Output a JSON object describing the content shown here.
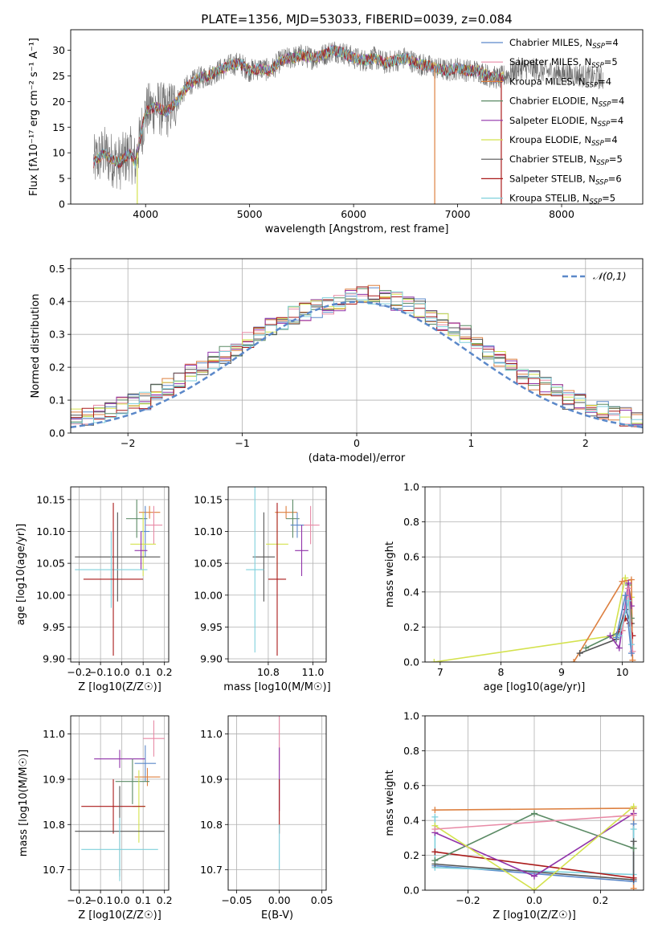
{
  "figure": {
    "title": "PLATE=1356, MJD=53033, FIBERID=0039, z=0.084"
  },
  "chart_data": [
    {
      "id": "spectrum",
      "type": "line",
      "xlabel": "wavelength [Angstrom, rest frame]",
      "ylabel": "Flux [fλ10⁻¹⁷ erg cm⁻² s⁻¹ A⁻¹]",
      "xlim": [
        3280,
        8780
      ],
      "ylim": [
        0,
        34
      ],
      "xticks": [
        4000,
        5000,
        6000,
        7000,
        8000
      ],
      "yticks": [
        0,
        5,
        10,
        15,
        20,
        25,
        30
      ],
      "grid": false,
      "legend_position": "top-right",
      "continuum": {
        "x": [
          3500,
          3550,
          3600,
          3650,
          3700,
          3750,
          3800,
          3850,
          3900,
          3950,
          4000,
          4100,
          4200,
          4300,
          4400,
          4500,
          4600,
          4700,
          4800,
          4900,
          5000,
          5100,
          5200,
          5300,
          5400,
          5500,
          5600,
          5700,
          5800,
          5900,
          6000,
          6100,
          6200,
          6300,
          6400,
          6500,
          6600,
          6700,
          6800,
          6900,
          7000,
          7100,
          7200,
          7300,
          7400,
          7600,
          7800,
          8000,
          8200,
          8400
        ],
        "y": [
          8,
          9,
          10,
          9,
          8.5,
          8,
          9,
          10,
          8,
          13,
          18,
          19,
          18,
          20,
          23,
          24.5,
          25,
          26,
          27,
          27.5,
          26,
          26.5,
          26,
          28,
          28.5,
          29,
          28.5,
          29,
          30,
          29.5,
          28.5,
          28,
          28.5,
          27.5,
          28,
          28.5,
          27.5,
          27,
          26.5,
          26,
          26.5,
          26,
          26,
          25,
          24.5,
          26.5,
          26,
          25.5,
          25,
          24.5
        ]
      },
      "series": [
        {
          "name": "Chabrier MILES, N_SSP=4",
          "color": "#5b88c9"
        },
        {
          "name": "Salpeter MILES, N_SSP=5",
          "color": "#e88aa6"
        },
        {
          "name": "Kroupa MILES, N_SSP=4",
          "color": "#dd8040"
        },
        {
          "name": "Chabrier ELODIE, N_SSP=4",
          "color": "#5a8a64"
        },
        {
          "name": "Salpeter ELODIE, N_SSP=4",
          "color": "#9033aa"
        },
        {
          "name": "Kroupa ELODIE, N_SSP=4",
          "color": "#d4e24e"
        },
        {
          "name": "Chabrier STELIB, N_SSP=5",
          "color": "#555555"
        },
        {
          "name": "Salpeter STELIB, N_SSP=6",
          "color": "#aa1a1a"
        },
        {
          "name": "Kroupa STELIB, N_SSP=5",
          "color": "#7fd0dc"
        }
      ],
      "legend_labels": [
        {
          "pre": "Chabrier MILES, N",
          "sub": "SSP",
          "post": "=4"
        },
        {
          "pre": "Salpeter MILES, N",
          "sub": "SSP",
          "post": "=5"
        },
        {
          "pre": "Kroupa MILES, N",
          "sub": "SSP",
          "post": "=4"
        },
        {
          "pre": "Chabrier ELODIE, N",
          "sub": "SSP",
          "post": "=4"
        },
        {
          "pre": "Salpeter ELODIE, N",
          "sub": "SSP",
          "post": "=4"
        },
        {
          "pre": "Kroupa ELODIE, N",
          "sub": "SSP",
          "post": "=4"
        },
        {
          "pre": "Chabrier STELIB, N",
          "sub": "SSP",
          "post": "=5"
        },
        {
          "pre": "Salpeter STELIB, N",
          "sub": "SSP",
          "post": "=6"
        },
        {
          "pre": "Kroupa STELIB, N",
          "sub": "SSP",
          "post": "=5"
        }
      ],
      "model_dropouts": [
        {
          "x": 3920,
          "color": "#d4e24e"
        },
        {
          "x": 6780,
          "color": "#dd8040"
        },
        {
          "x": 7420,
          "color": "#aa1a1a"
        }
      ]
    },
    {
      "id": "residuals",
      "type": "bar",
      "xlabel": "(data-model)/error",
      "ylabel": "Normed distribution",
      "xlim": [
        -2.5,
        2.5
      ],
      "ylim": [
        0,
        0.53
      ],
      "xticks": [
        -2,
        -1,
        0,
        1,
        2
      ],
      "yticks": [
        0.0,
        0.1,
        0.2,
        0.3,
        0.4,
        0.5
      ],
      "grid": true,
      "bin_width": 0.1,
      "reference": {
        "name": "𝒩(0,1)",
        "color": "#5b88c9",
        "style": "dashed"
      },
      "legend_position": "top-right",
      "histogram_envelope": [
        0.02,
        0.025,
        0.03,
        0.035,
        0.04,
        0.045,
        0.05,
        0.06,
        0.07,
        0.08,
        0.09,
        0.1,
        0.12,
        0.14,
        0.16,
        0.18,
        0.2,
        0.22,
        0.24,
        0.26,
        0.28,
        0.3,
        0.32,
        0.34,
        0.36,
        0.37,
        0.38,
        0.39,
        0.4,
        0.41,
        0.42,
        0.42,
        0.41,
        0.4,
        0.39,
        0.38,
        0.36,
        0.34,
        0.32,
        0.3,
        0.28,
        0.25,
        0.23,
        0.2,
        0.18,
        0.16,
        0.14,
        0.12,
        0.1,
        0.09,
        0.08,
        0.07,
        0.06,
        0.05,
        0.045,
        0.04,
        0.035,
        0.03,
        0.025,
        0.02
      ]
    },
    {
      "id": "age-vs-Z",
      "type": "scatter",
      "xlabel": "Z [log10(Z/Z☉)]",
      "ylabel": "age [log10(age/yr)]",
      "xlim": [
        -0.24,
        0.22
      ],
      "ylim": [
        9.895,
        10.17
      ],
      "xticks": [
        -0.2,
        -0.1,
        0.0,
        0.1,
        0.2
      ],
      "yticks": [
        9.9,
        9.95,
        10.0,
        10.05,
        10.1,
        10.15
      ],
      "grid": true,
      "points": [
        {
          "x": 0.13,
          "y": 10.13,
          "xerr": 0.05,
          "yerr": 0.01,
          "color": "#dd8040"
        },
        {
          "x": 0.07,
          "y": 10.12,
          "xerr": 0.05,
          "yerr": 0.03,
          "color": "#5a8a64"
        },
        {
          "x": 0.15,
          "y": 10.11,
          "xerr": 0.04,
          "yerr": 0.03,
          "color": "#e88aa6"
        },
        {
          "x": 0.11,
          "y": 10.1,
          "xerr": 0.02,
          "yerr": 0.04,
          "color": "#5b88c9"
        },
        {
          "x": 0.1,
          "y": 10.08,
          "xerr": 0.06,
          "yerr": 0.05,
          "color": "#d4e24e"
        },
        {
          "x": 0.09,
          "y": 10.07,
          "xerr": 0.03,
          "yerr": 0.03,
          "color": "#9033aa"
        },
        {
          "x": -0.02,
          "y": 10.06,
          "xerr": 0.2,
          "yerr": 0.07,
          "color": "#555555"
        },
        {
          "x": -0.05,
          "y": 10.04,
          "xerr": 0.17,
          "yerr": 0.06,
          "color": "#7fd0dc"
        },
        {
          "x": -0.04,
          "y": 10.025,
          "xerr": 0.14,
          "yerr": 0.12,
          "color": "#aa1a1a"
        }
      ]
    },
    {
      "id": "age-vs-mass",
      "type": "scatter",
      "xlabel": "mass [log10(M/M☉)]",
      "ylabel": "",
      "xlim": [
        10.62,
        11.06
      ],
      "ylim": [
        9.895,
        10.17
      ],
      "xticks": [
        10.8,
        11.0
      ],
      "yticks": [
        9.9,
        9.95,
        10.0,
        10.05,
        10.1,
        10.15
      ],
      "grid": true,
      "points": [
        {
          "x": 10.88,
          "y": 10.13,
          "xerr": 0.05,
          "yerr": 0.01,
          "color": "#dd8040"
        },
        {
          "x": 10.91,
          "y": 10.12,
          "xerr": 0.03,
          "yerr": 0.03,
          "color": "#5a8a64"
        },
        {
          "x": 10.99,
          "y": 10.11,
          "xerr": 0.04,
          "yerr": 0.03,
          "color": "#e88aa6"
        },
        {
          "x": 10.93,
          "y": 10.11,
          "xerr": 0.03,
          "yerr": 0.02,
          "color": "#5b88c9"
        },
        {
          "x": 10.84,
          "y": 10.08,
          "xerr": 0.05,
          "yerr": 0.05,
          "color": "#d4e24e"
        },
        {
          "x": 10.95,
          "y": 10.07,
          "xerr": 0.03,
          "yerr": 0.04,
          "color": "#9033aa"
        },
        {
          "x": 10.78,
          "y": 10.06,
          "xerr": 0.05,
          "yerr": 0.07,
          "color": "#555555"
        },
        {
          "x": 10.74,
          "y": 10.04,
          "xerr": 0.04,
          "yerr": 0.13,
          "color": "#7fd0dc"
        },
        {
          "x": 10.84,
          "y": 10.025,
          "xerr": 0.04,
          "yerr": 0.12,
          "color": "#aa1a1a"
        }
      ]
    },
    {
      "id": "weight-vs-age",
      "type": "line",
      "xlabel": "age [log10(age/yr)]",
      "ylabel": "mass weight",
      "xlim": [
        6.75,
        10.35
      ],
      "ylim": [
        0,
        1
      ],
      "xticks": [
        7,
        8,
        9,
        10
      ],
      "yticks": [
        0.0,
        0.2,
        0.4,
        0.6,
        0.8,
        1.0
      ],
      "grid": true,
      "series": [
        {
          "color": "#d4e24e",
          "x": [
            6.9,
            9.85,
            10.05,
            10.15
          ],
          "y": [
            0.0,
            0.15,
            0.48,
            0.37
          ]
        },
        {
          "color": "#dd8040",
          "x": [
            9.2,
            10.0,
            10.15,
            10.17
          ],
          "y": [
            0.0,
            0.46,
            0.47,
            0.01
          ]
        },
        {
          "color": "#555555",
          "x": [
            9.3,
            9.9,
            10.05,
            10.15
          ],
          "y": [
            0.05,
            0.13,
            0.3,
            0.22
          ]
        },
        {
          "color": "#5a8a64",
          "x": [
            9.4,
            10.0,
            10.1,
            10.15
          ],
          "y": [
            0.08,
            0.18,
            0.44,
            0.25
          ]
        },
        {
          "color": "#9033aa",
          "x": [
            9.8,
            9.95,
            10.1,
            10.15
          ],
          "y": [
            0.15,
            0.08,
            0.45,
            0.32
          ]
        },
        {
          "color": "#aa1a1a",
          "x": [
            9.95,
            10.05,
            10.12,
            10.17
          ],
          "y": [
            0.17,
            0.25,
            0.22,
            0.15
          ]
        },
        {
          "color": "#e88aa6",
          "x": [
            10.0,
            10.1,
            10.17
          ],
          "y": [
            0.18,
            0.42,
            0.06
          ]
        },
        {
          "color": "#7fd0dc",
          "x": [
            9.95,
            10.1,
            10.15
          ],
          "y": [
            0.15,
            0.35,
            0.1
          ]
        },
        {
          "color": "#5b88c9",
          "x": [
            9.9,
            10.05,
            10.15
          ],
          "y": [
            0.14,
            0.38,
            0.05
          ]
        }
      ]
    },
    {
      "id": "mass-vs-Z",
      "type": "scatter",
      "xlabel": "Z [log10(Z/Z☉)]",
      "ylabel": "mass [log10(M/M☉)]",
      "xlim": [
        -0.24,
        0.22
      ],
      "ylim": [
        10.655,
        11.04
      ],
      "xticks": [
        -0.2,
        -0.1,
        0.0,
        0.1,
        0.2
      ],
      "yticks": [
        10.7,
        10.8,
        10.9,
        11.0
      ],
      "grid": true,
      "points": [
        {
          "x": 0.15,
          "y": 10.99,
          "xerr": 0.05,
          "yerr": 0.04,
          "color": "#e88aa6"
        },
        {
          "x": -0.01,
          "y": 10.945,
          "xerr": 0.12,
          "yerr": 0.02,
          "color": "#9033aa"
        },
        {
          "x": 0.11,
          "y": 10.935,
          "xerr": 0.05,
          "yerr": 0.04,
          "color": "#5b88c9"
        },
        {
          "x": 0.12,
          "y": 10.905,
          "xerr": 0.06,
          "yerr": 0.02,
          "color": "#dd8040"
        },
        {
          "x": 0.05,
          "y": 10.895,
          "xerr": 0.08,
          "yerr": 0.05,
          "color": "#5a8a64"
        },
        {
          "x": 0.08,
          "y": 10.84,
          "xerr": 0.03,
          "yerr": 0.08,
          "color": "#d4e24e"
        },
        {
          "x": -0.04,
          "y": 10.84,
          "xerr": 0.15,
          "yerr": 0.06,
          "color": "#aa1a1a"
        },
        {
          "x": -0.01,
          "y": 10.785,
          "xerr": 0.21,
          "yerr": 0.1,
          "color": "#555555"
        },
        {
          "x": -0.01,
          "y": 10.745,
          "xerr": 0.18,
          "yerr": 0.07,
          "color": "#7fd0dc"
        }
      ]
    },
    {
      "id": "mass-vs-ebv",
      "type": "scatter",
      "xlabel": "E(B-V)",
      "ylabel": "",
      "xlim": [
        -0.06,
        0.055
      ],
      "ylim": [
        10.655,
        11.04
      ],
      "xticks": [
        -0.05,
        0.0,
        0.05
      ],
      "yticks": [
        10.7,
        10.8,
        10.9,
        11.0
      ],
      "grid": true,
      "points": [
        {
          "x": 0.0,
          "y": 10.98,
          "yerr": 0.06,
          "color": "#e88aa6"
        },
        {
          "x": 0.0,
          "y": 10.9,
          "yerr": 0.07,
          "color": "#9033aa"
        },
        {
          "x": 0.0,
          "y": 10.84,
          "yerr": 0.06,
          "color": "#aa1a1a"
        },
        {
          "x": 0.0,
          "y": 10.75,
          "yerr": 0.05,
          "color": "#7fd0dc"
        }
      ]
    },
    {
      "id": "weight-vs-Z",
      "type": "line",
      "xlabel": "Z [log10(Z/Z☉)]",
      "ylabel": "mass weight",
      "xlim": [
        -0.33,
        0.33
      ],
      "ylim": [
        0,
        1
      ],
      "xticks": [
        -0.2,
        0.0,
        0.2
      ],
      "yticks": [
        0.0,
        0.2,
        0.4,
        0.6,
        0.8,
        1.0
      ],
      "grid": true,
      "series": [
        {
          "color": "#dd8040",
          "x": [
            -0.3,
            0.3,
            0.3
          ],
          "y": [
            0.46,
            0.47,
            0.01
          ]
        },
        {
          "color": "#5b88c9",
          "x": [
            -0.3,
            0.3,
            0.3
          ],
          "y": [
            0.14,
            0.05,
            0.38
          ]
        },
        {
          "color": "#7fd0dc",
          "x": [
            -0.3,
            -0.3,
            0.3,
            0.3
          ],
          "y": [
            0.42,
            0.13,
            0.09,
            0.35
          ]
        },
        {
          "color": "#555555",
          "x": [
            -0.3,
            0.3,
            0.3
          ],
          "y": [
            0.15,
            0.06,
            0.28
          ]
        },
        {
          "color": "#aa1a1a",
          "x": [
            -0.3,
            0.3
          ],
          "y": [
            0.22,
            0.07
          ]
        },
        {
          "color": "#5a8a64",
          "x": [
            -0.3,
            0.0,
            0.3
          ],
          "y": [
            0.17,
            0.44,
            0.24
          ]
        },
        {
          "color": "#9033aa",
          "x": [
            -0.3,
            0.0,
            0.3
          ],
          "y": [
            0.33,
            0.08,
            0.44
          ]
        },
        {
          "color": "#d4e24e",
          "x": [
            -0.3,
            0.0,
            0.3
          ],
          "y": [
            0.37,
            0.0,
            0.48
          ]
        },
        {
          "color": "#e88aa6",
          "x": [
            -0.3,
            0.3
          ],
          "y": [
            0.35,
            0.43
          ]
        }
      ]
    }
  ]
}
